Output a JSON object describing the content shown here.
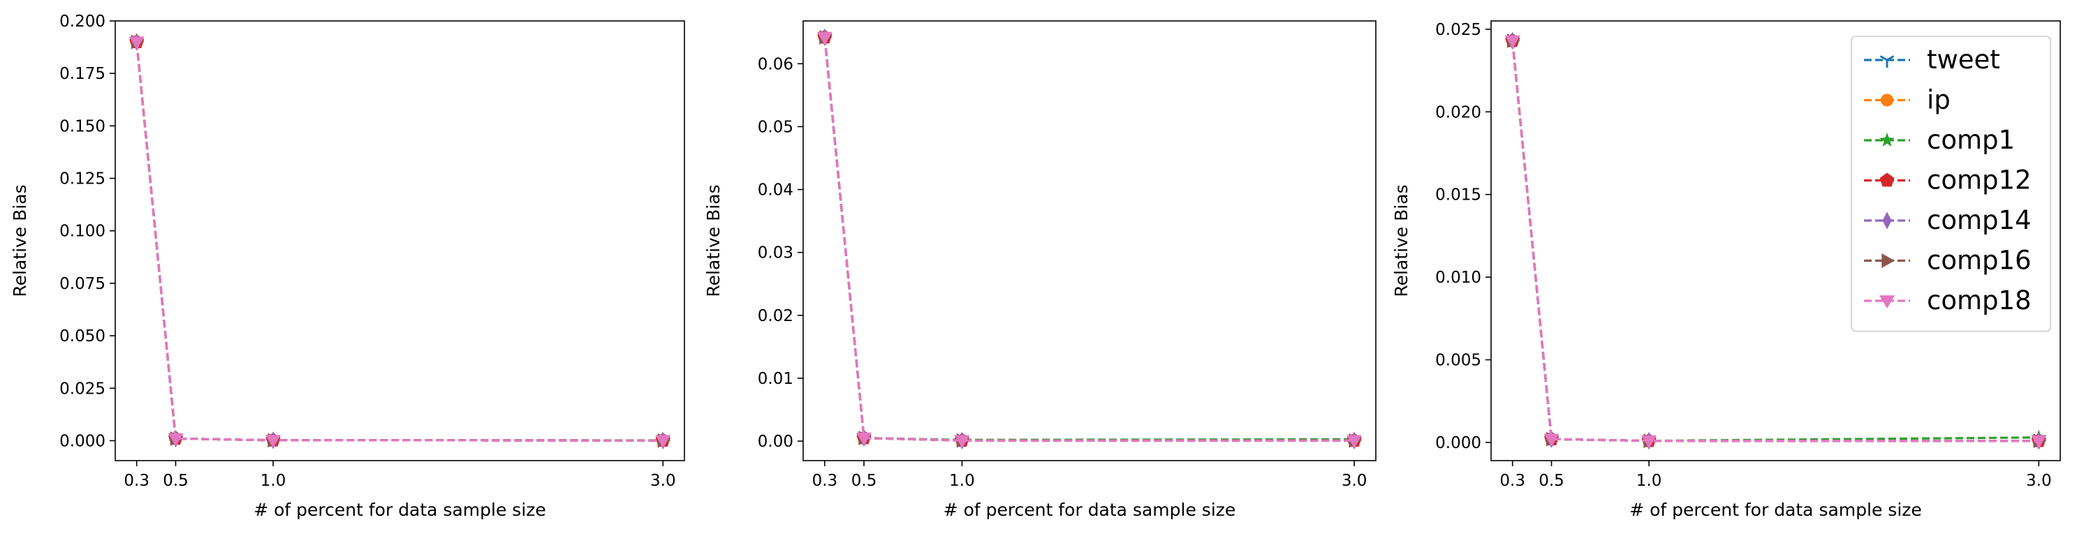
{
  "figure": {
    "series_colors": {
      "tweet": "#1f77b4",
      "ip": "#ff7f0e",
      "comp1": "#2ca02c",
      "comp12": "#d62728",
      "comp14": "#9467bd",
      "comp16": "#8c564b",
      "comp18": "#e377c2"
    },
    "series_markers": {
      "tweet": "tri-down",
      "ip": "circle",
      "comp1": "star",
      "comp12": "pentagon",
      "comp14": "thin-diamond",
      "comp16": "triangle-right",
      "comp18": "triangle-down"
    },
    "line_style": "dashed"
  },
  "chart_data": [
    {
      "type": "line",
      "xlabel": "# of percent for data sample size",
      "ylabel": "Relative Bias",
      "x": [
        0.3,
        0.5,
        1.0,
        3.0
      ],
      "xticks": [
        "0.3",
        "0.5",
        "1.0",
        "3.0"
      ],
      "xlim": [
        0.19,
        3.11
      ],
      "ylim": [
        -0.0095,
        0.2
      ],
      "yticks": [
        "0.000",
        "0.025",
        "0.050",
        "0.075",
        "0.100",
        "0.125",
        "0.150",
        "0.175",
        "0.200"
      ],
      "ytick_values": [
        0,
        0.025,
        0.05,
        0.075,
        0.1,
        0.125,
        0.15,
        0.175,
        0.2
      ],
      "legend": false,
      "grid": false,
      "series": [
        {
          "name": "tweet",
          "values": [
            0.19,
            0.001,
            0.0002,
            0.0001
          ]
        },
        {
          "name": "ip",
          "values": [
            0.19,
            0.001,
            0.0002,
            0.0001
          ]
        },
        {
          "name": "comp1",
          "values": [
            0.19,
            0.001,
            0.0002,
            0.0002
          ]
        },
        {
          "name": "comp12",
          "values": [
            0.19,
            0.001,
            0.0002,
            0.0001
          ]
        },
        {
          "name": "comp14",
          "values": [
            0.19,
            0.001,
            0.0002,
            0.0001
          ]
        },
        {
          "name": "comp16",
          "values": [
            0.19,
            0.001,
            0.0002,
            0.0001
          ]
        },
        {
          "name": "comp18",
          "values": [
            0.19,
            0.001,
            0.0002,
            0.0001
          ]
        }
      ]
    },
    {
      "type": "line",
      "xlabel": "# of percent for data sample size",
      "ylabel": "Relative Bias",
      "x": [
        0.3,
        0.5,
        1.0,
        3.0
      ],
      "xticks": [
        "0.3",
        "0.5",
        "1.0",
        "3.0"
      ],
      "xlim": [
        0.19,
        3.11
      ],
      "ylim": [
        -0.0031,
        0.0668
      ],
      "yticks": [
        "0.00",
        "0.01",
        "0.02",
        "0.03",
        "0.04",
        "0.05",
        "0.06"
      ],
      "ytick_values": [
        0,
        0.01,
        0.02,
        0.03,
        0.04,
        0.05,
        0.06
      ],
      "legend": false,
      "grid": false,
      "series": [
        {
          "name": "tweet",
          "values": [
            0.0642,
            0.0005,
            0.0001,
            0.0001
          ]
        },
        {
          "name": "ip",
          "values": [
            0.0642,
            0.0005,
            0.0001,
            0.0001
          ]
        },
        {
          "name": "comp1",
          "values": [
            0.0642,
            0.0005,
            0.0002,
            0.0003
          ]
        },
        {
          "name": "comp12",
          "values": [
            0.0642,
            0.0005,
            0.0001,
            0.0001
          ]
        },
        {
          "name": "comp14",
          "values": [
            0.0642,
            0.0005,
            0.0001,
            0.0001
          ]
        },
        {
          "name": "comp16",
          "values": [
            0.0642,
            0.0005,
            0.0001,
            0.0001
          ]
        },
        {
          "name": "comp18",
          "values": [
            0.0642,
            0.0005,
            0.0001,
            0.0001
          ]
        }
      ]
    },
    {
      "type": "line",
      "xlabel": "# of percent for data sample size",
      "ylabel": "Relative Bias",
      "x": [
        0.3,
        0.5,
        1.0,
        3.0
      ],
      "xticks": [
        "0.3",
        "0.5",
        "1.0",
        "3.0"
      ],
      "xlim": [
        0.19,
        3.11
      ],
      "ylim": [
        -0.0011,
        0.0255
      ],
      "yticks": [
        "0.000",
        "0.005",
        "0.010",
        "0.015",
        "0.020",
        "0.025"
      ],
      "ytick_values": [
        0,
        0.005,
        0.01,
        0.015,
        0.02,
        0.025
      ],
      "legend": true,
      "legend_position": "upper right",
      "grid": false,
      "series": [
        {
          "name": "tweet",
          "values": [
            0.0243,
            0.0002,
            0.0001,
            0.0001
          ]
        },
        {
          "name": "ip",
          "values": [
            0.0243,
            0.0002,
            0.0001,
            0.0001
          ]
        },
        {
          "name": "comp1",
          "values": [
            0.0243,
            0.0002,
            0.0001,
            0.0003
          ]
        },
        {
          "name": "comp12",
          "values": [
            0.0243,
            0.0002,
            0.0001,
            0.0001
          ]
        },
        {
          "name": "comp14",
          "values": [
            0.0243,
            0.0002,
            0.0001,
            0.0001
          ]
        },
        {
          "name": "comp16",
          "values": [
            0.0243,
            0.0002,
            0.0001,
            0.0001
          ]
        },
        {
          "name": "comp18",
          "values": [
            0.0243,
            0.0002,
            0.0001,
            0.0001
          ]
        }
      ]
    }
  ]
}
